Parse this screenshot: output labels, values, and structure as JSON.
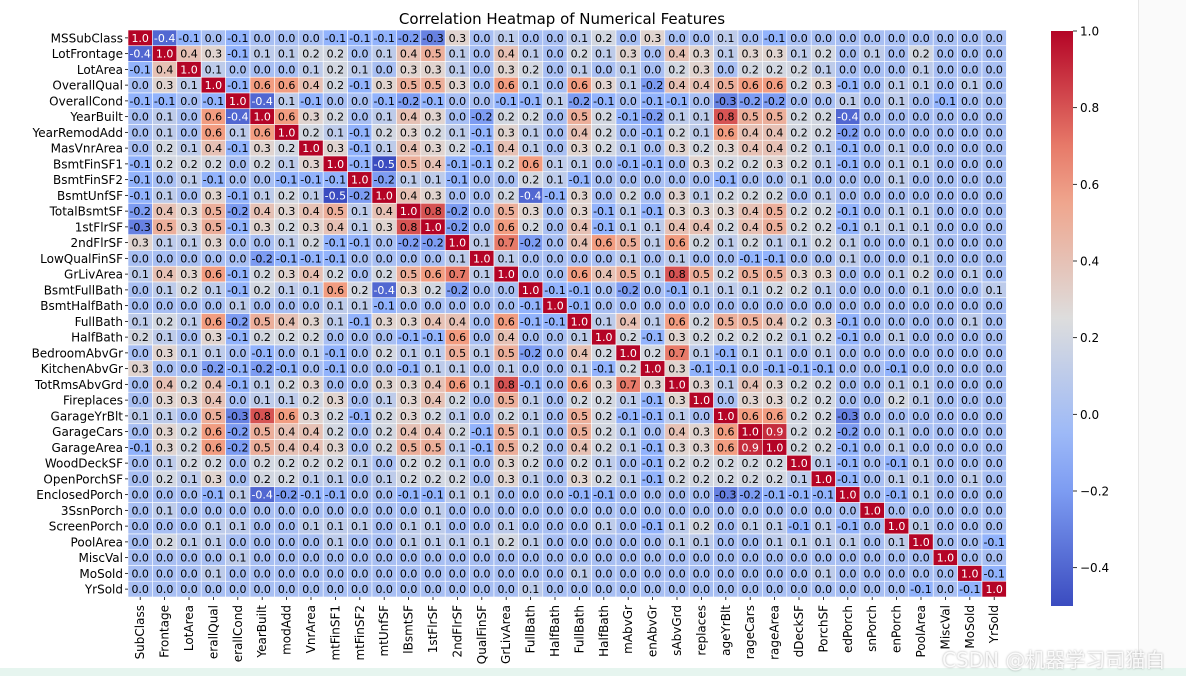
{
  "chart_data": {
    "type": "heatmap",
    "title": "Correlation Heatmap of Numerical Features",
    "x_tick_labels_visible": [
      "SubClass",
      "Frontage",
      "LotArea",
      "erallQual",
      "erallCond",
      "YearBuilt",
      "modAdd",
      "VnrArea",
      "mtFinSF1",
      "mtFinSF2",
      "mtUnfSF",
      "lBsmtSF",
      "1stFlrSF",
      "2ndFlrSF",
      "QualFinSF",
      "GrLivArea",
      "FullBath",
      "HalfBath",
      "FullBath",
      "HalfBath",
      "mAbvGr",
      "enAbvGr",
      "sAbvGrd",
      "replaces",
      "ageYrBlt",
      "rageCars",
      "rageArea",
      "dDeckSF",
      "PorchSF",
      "edPorch",
      "snPorch",
      "enPorch",
      "PoolArea",
      "MiscVal",
      "MoSold",
      "YrSold"
    ],
    "features": [
      "MSSubClass",
      "LotFrontage",
      "LotArea",
      "OverallQual",
      "OverallCond",
      "YearBuilt",
      "YearRemodAdd",
      "MasVnrArea",
      "BsmtFinSF1",
      "BsmtFinSF2",
      "BsmtUnfSF",
      "TotalBsmtSF",
      "1stFlrSF",
      "2ndFlrSF",
      "LowQualFinSF",
      "GrLivArea",
      "BsmtFullBath",
      "BsmtHalfBath",
      "FullBath",
      "HalfBath",
      "BedroomAbvGr",
      "KitchenAbvGr",
      "TotRmsAbvGrd",
      "Fireplaces",
      "GarageYrBlt",
      "GarageCars",
      "GarageArea",
      "WoodDeckSF",
      "OpenPorchSF",
      "EnclosedPorch",
      "3SsnPorch",
      "ScreenPorch",
      "PoolArea",
      "MiscVal",
      "MoSold",
      "YrSold"
    ],
    "matrix": [
      [
        1.0,
        -0.4,
        -0.1,
        0.0,
        -0.1,
        0.0,
        0.0,
        0.0,
        -0.1,
        -0.1,
        -0.1,
        -0.2,
        -0.3,
        0.3,
        0.0,
        0.1,
        0.0,
        0.0,
        0.1,
        0.2,
        0.0,
        0.3,
        0.0,
        0.0,
        0.1,
        0.0,
        -0.1,
        0.0,
        0.0,
        0.0,
        0.0,
        0.0,
        0.0,
        0.0,
        0.0,
        0.0
      ],
      [
        -0.4,
        1.0,
        0.4,
        0.3,
        -0.1,
        0.1,
        0.1,
        0.2,
        0.2,
        0.0,
        0.1,
        0.4,
        0.5,
        0.1,
        0.0,
        0.4,
        0.1,
        0.0,
        0.2,
        0.1,
        0.3,
        0.0,
        0.4,
        0.3,
        0.1,
        0.3,
        0.3,
        0.1,
        0.2,
        0.0,
        0.1,
        0.0,
        0.2,
        0.0,
        0.0,
        0.0
      ],
      [
        -0.1,
        0.4,
        1.0,
        0.1,
        0.0,
        0.0,
        0.0,
        0.1,
        0.2,
        0.1,
        0.0,
        0.3,
        0.3,
        0.1,
        0.0,
        0.3,
        0.2,
        0.0,
        0.1,
        0.0,
        0.1,
        0.0,
        0.2,
        0.3,
        0.0,
        0.2,
        0.2,
        0.2,
        0.1,
        0.0,
        0.0,
        0.0,
        0.1,
        0.0,
        0.0,
        0.0
      ],
      [
        0.0,
        0.3,
        0.1,
        1.0,
        -0.1,
        0.6,
        0.6,
        0.4,
        0.2,
        -0.1,
        0.3,
        0.5,
        0.5,
        0.3,
        0.0,
        0.6,
        0.1,
        0.0,
        0.6,
        0.3,
        0.1,
        -0.2,
        0.4,
        0.4,
        0.5,
        0.6,
        0.6,
        0.2,
        0.3,
        -0.1,
        0.0,
        0.1,
        0.1,
        0.0,
        0.1,
        0.0
      ],
      [
        -0.1,
        -0.1,
        0.0,
        -0.1,
        1.0,
        -0.4,
        0.1,
        -0.1,
        0.0,
        0.0,
        -0.1,
        -0.2,
        -0.1,
        0.0,
        0.0,
        -0.1,
        -0.1,
        0.1,
        -0.2,
        -0.1,
        0.0,
        -0.1,
        -0.1,
        0.0,
        -0.3,
        -0.2,
        -0.2,
        0.0,
        0.0,
        0.1,
        0.0,
        0.1,
        0.0,
        -0.1,
        0.0,
        0.0
      ],
      [
        0.0,
        0.1,
        0.0,
        0.6,
        -0.4,
        1.0,
        0.6,
        0.3,
        0.2,
        0.0,
        0.1,
        0.4,
        0.3,
        0.0,
        -0.2,
        0.2,
        0.2,
        0.0,
        0.5,
        0.2,
        -0.1,
        -0.2,
        0.1,
        0.1,
        0.8,
        0.5,
        0.5,
        0.2,
        0.2,
        -0.4,
        0.0,
        0.0,
        0.0,
        0.0,
        0.0,
        0.0
      ],
      [
        0.0,
        0.1,
        0.0,
        0.6,
        0.1,
        0.6,
        1.0,
        0.2,
        0.1,
        -0.1,
        0.2,
        0.3,
        0.2,
        0.1,
        -0.1,
        0.3,
        0.1,
        0.0,
        0.4,
        0.2,
        0.0,
        -0.1,
        0.2,
        0.1,
        0.6,
        0.4,
        0.4,
        0.2,
        0.2,
        -0.2,
        0.0,
        0.0,
        0.0,
        0.0,
        0.0,
        0.0
      ],
      [
        0.0,
        0.2,
        0.1,
        0.4,
        -0.1,
        0.3,
        0.2,
        1.0,
        0.3,
        -0.1,
        0.1,
        0.4,
        0.3,
        0.2,
        -0.1,
        0.4,
        0.1,
        0.0,
        0.3,
        0.2,
        0.1,
        0.0,
        0.3,
        0.2,
        0.3,
        0.4,
        0.4,
        0.2,
        0.1,
        -0.1,
        0.0,
        0.1,
        0.0,
        0.0,
        0.0,
        0.0
      ],
      [
        -0.1,
        0.2,
        0.2,
        0.2,
        0.0,
        0.2,
        0.1,
        0.3,
        1.0,
        -0.1,
        -0.5,
        0.5,
        0.4,
        -0.1,
        -0.1,
        0.2,
        0.6,
        0.1,
        0.1,
        0.0,
        -0.1,
        -0.1,
        0.0,
        0.3,
        0.2,
        0.2,
        0.3,
        0.2,
        0.1,
        -0.1,
        0.0,
        0.1,
        0.1,
        0.0,
        0.0,
        0.0
      ],
      [
        -0.1,
        0.0,
        0.1,
        -0.1,
        0.0,
        0.0,
        -0.1,
        -0.1,
        -0.1,
        1.0,
        -0.2,
        0.1,
        0.1,
        -0.1,
        0.0,
        0.0,
        0.2,
        0.1,
        -0.1,
        0.0,
        0.0,
        0.0,
        0.0,
        0.0,
        -0.1,
        0.0,
        0.0,
        0.1,
        0.0,
        0.0,
        0.0,
        0.1,
        0.0,
        0.0,
        0.0,
        0.0
      ],
      [
        -0.1,
        0.1,
        0.0,
        0.3,
        -0.1,
        0.1,
        0.2,
        0.1,
        -0.5,
        -0.2,
        1.0,
        0.4,
        0.3,
        0.0,
        0.0,
        0.2,
        -0.4,
        -0.1,
        0.3,
        0.0,
        0.2,
        0.0,
        0.3,
        0.1,
        0.2,
        0.2,
        0.2,
        0.0,
        0.1,
        0.0,
        0.0,
        0.0,
        0.0,
        0.0,
        0.0,
        0.0
      ],
      [
        -0.2,
        0.4,
        0.3,
        0.5,
        -0.2,
        0.4,
        0.3,
        0.4,
        0.5,
        0.1,
        0.4,
        1.0,
        0.8,
        -0.2,
        0.0,
        0.5,
        0.3,
        0.0,
        0.3,
        -0.1,
        0.1,
        -0.1,
        0.3,
        0.3,
        0.3,
        0.4,
        0.5,
        0.2,
        0.2,
        -0.1,
        0.0,
        0.1,
        0.1,
        0.0,
        0.0,
        0.0
      ],
      [
        -0.3,
        0.5,
        0.3,
        0.5,
        -0.1,
        0.3,
        0.2,
        0.3,
        0.4,
        0.1,
        0.3,
        0.8,
        1.0,
        -0.2,
        0.0,
        0.6,
        0.2,
        0.0,
        0.4,
        -0.1,
        0.1,
        0.1,
        0.4,
        0.4,
        0.2,
        0.4,
        0.5,
        0.2,
        0.2,
        -0.1,
        0.1,
        0.1,
        0.1,
        0.0,
        0.0,
        0.0
      ],
      [
        0.3,
        0.1,
        0.1,
        0.3,
        0.0,
        0.0,
        0.1,
        0.2,
        -0.1,
        -0.1,
        0.0,
        -0.2,
        -0.2,
        1.0,
        0.1,
        0.7,
        -0.2,
        0.0,
        0.4,
        0.6,
        0.5,
        0.1,
        0.6,
        0.2,
        0.1,
        0.2,
        0.1,
        0.1,
        0.2,
        0.1,
        0.0,
        0.0,
        0.1,
        0.0,
        0.0,
        0.0
      ],
      [
        0.0,
        0.0,
        0.0,
        0.0,
        0.0,
        -0.2,
        -0.1,
        -0.1,
        -0.1,
        0.0,
        0.0,
        0.0,
        0.0,
        0.1,
        1.0,
        0.1,
        0.0,
        0.0,
        0.0,
        0.0,
        0.1,
        0.0,
        0.1,
        0.0,
        0.0,
        -0.1,
        -0.1,
        0.0,
        0.0,
        0.1,
        0.0,
        0.0,
        0.1,
        0.0,
        0.0,
        0.0
      ],
      [
        0.1,
        0.4,
        0.3,
        0.6,
        -0.1,
        0.2,
        0.3,
        0.4,
        0.2,
        0.0,
        0.2,
        0.5,
        0.6,
        0.7,
        0.1,
        1.0,
        0.0,
        0.0,
        0.6,
        0.4,
        0.5,
        0.1,
        0.8,
        0.5,
        0.2,
        0.5,
        0.5,
        0.3,
        0.3,
        0.0,
        0.0,
        0.1,
        0.2,
        0.0,
        0.1,
        0.0
      ],
      [
        0.0,
        0.1,
        0.2,
        0.1,
        -0.1,
        0.2,
        0.1,
        0.1,
        0.6,
        0.2,
        -0.4,
        0.3,
        0.2,
        -0.2,
        0.0,
        0.0,
        1.0,
        -0.1,
        -0.1,
        0.0,
        -0.2,
        0.0,
        -0.1,
        0.1,
        0.1,
        0.1,
        0.2,
        0.2,
        0.1,
        0.0,
        0.0,
        0.0,
        0.1,
        0.0,
        0.0,
        0.1
      ],
      [
        0.0,
        0.0,
        0.0,
        0.0,
        0.1,
        0.0,
        0.0,
        0.0,
        0.1,
        0.1,
        -0.1,
        0.0,
        0.0,
        0.0,
        0.0,
        0.0,
        -0.1,
        1.0,
        -0.1,
        0.0,
        0.0,
        0.0,
        0.0,
        0.0,
        0.0,
        0.0,
        0.0,
        0.0,
        0.0,
        0.0,
        0.0,
        0.0,
        0.0,
        0.0,
        0.0,
        0.0
      ],
      [
        0.1,
        0.2,
        0.1,
        0.6,
        -0.2,
        0.5,
        0.4,
        0.3,
        0.1,
        -0.1,
        0.3,
        0.3,
        0.4,
        0.4,
        0.0,
        0.6,
        -0.1,
        -0.1,
        1.0,
        0.1,
        0.4,
        0.1,
        0.6,
        0.2,
        0.5,
        0.5,
        0.4,
        0.2,
        0.3,
        -0.1,
        0.0,
        0.0,
        0.0,
        0.0,
        0.1,
        0.0
      ],
      [
        0.2,
        0.1,
        0.0,
        0.3,
        -0.1,
        0.2,
        0.2,
        0.2,
        0.0,
        0.0,
        0.0,
        -0.1,
        -0.1,
        0.6,
        0.0,
        0.4,
        0.0,
        0.0,
        0.1,
        1.0,
        0.2,
        -0.1,
        0.3,
        0.2,
        0.2,
        0.2,
        0.2,
        0.1,
        0.2,
        -0.1,
        0.0,
        0.1,
        0.0,
        0.0,
        0.0,
        0.0
      ],
      [
        0.0,
        0.3,
        0.1,
        0.1,
        0.0,
        -0.1,
        0.0,
        0.1,
        -0.1,
        0.0,
        0.2,
        0.1,
        0.1,
        0.5,
        0.1,
        0.5,
        -0.2,
        0.0,
        0.4,
        0.2,
        1.0,
        0.2,
        0.7,
        0.1,
        -0.1,
        0.1,
        0.1,
        0.0,
        0.1,
        0.0,
        0.0,
        0.0,
        0.0,
        0.0,
        0.0,
        0.0
      ],
      [
        0.3,
        0.0,
        0.0,
        -0.2,
        -0.1,
        -0.2,
        -0.1,
        0.0,
        -0.1,
        0.0,
        0.0,
        -0.1,
        0.1,
        0.1,
        0.0,
        0.1,
        0.0,
        0.0,
        0.1,
        -0.1,
        0.2,
        1.0,
        0.3,
        -0.1,
        -0.1,
        0.0,
        -0.1,
        -0.1,
        -0.1,
        0.0,
        0.0,
        -0.1,
        0.0,
        0.0,
        0.0,
        0.0
      ],
      [
        0.0,
        0.4,
        0.2,
        0.4,
        -0.1,
        0.1,
        0.2,
        0.3,
        0.0,
        0.0,
        0.3,
        0.3,
        0.4,
        0.6,
        0.1,
        0.8,
        -0.1,
        0.0,
        0.6,
        0.3,
        0.7,
        0.3,
        1.0,
        0.3,
        0.1,
        0.4,
        0.3,
        0.2,
        0.2,
        0.0,
        0.0,
        0.1,
        0.1,
        0.0,
        0.0,
        0.0
      ],
      [
        0.0,
        0.3,
        0.3,
        0.4,
        0.0,
        0.1,
        0.1,
        0.2,
        0.3,
        0.0,
        0.1,
        0.3,
        0.4,
        0.2,
        0.0,
        0.5,
        0.1,
        0.0,
        0.2,
        0.2,
        0.1,
        -0.1,
        0.3,
        1.0,
        0.0,
        0.3,
        0.3,
        0.2,
        0.2,
        0.0,
        0.0,
        0.2,
        0.1,
        0.0,
        0.0,
        0.0
      ],
      [
        0.1,
        0.1,
        0.0,
        0.5,
        -0.3,
        0.8,
        0.6,
        0.3,
        0.2,
        -0.1,
        0.2,
        0.3,
        0.2,
        0.1,
        0.0,
        0.2,
        0.1,
        0.0,
        0.5,
        0.2,
        -0.1,
        -0.1,
        0.1,
        0.0,
        1.0,
        0.6,
        0.6,
        0.2,
        0.2,
        -0.3,
        0.0,
        0.0,
        0.0,
        0.0,
        0.0,
        0.0
      ],
      [
        0.0,
        0.3,
        0.2,
        0.6,
        -0.2,
        0.5,
        0.4,
        0.4,
        0.2,
        0.0,
        0.2,
        0.4,
        0.4,
        0.2,
        -0.1,
        0.5,
        0.1,
        0.0,
        0.5,
        0.2,
        0.1,
        0.0,
        0.4,
        0.3,
        0.6,
        1.0,
        0.9,
        0.2,
        0.2,
        -0.2,
        0.0,
        0.1,
        0.0,
        0.0,
        0.0,
        0.0
      ],
      [
        -0.1,
        0.3,
        0.2,
        0.6,
        -0.2,
        0.5,
        0.4,
        0.4,
        0.3,
        0.0,
        0.2,
        0.5,
        0.5,
        0.1,
        -0.1,
        0.5,
        0.2,
        0.0,
        0.4,
        0.2,
        0.1,
        -0.1,
        0.3,
        0.3,
        0.6,
        0.9,
        1.0,
        0.2,
        0.2,
        -0.1,
        0.0,
        0.1,
        0.0,
        0.0,
        0.0,
        0.0
      ],
      [
        0.0,
        0.1,
        0.2,
        0.2,
        0.0,
        0.2,
        0.2,
        0.2,
        0.2,
        0.1,
        0.0,
        0.2,
        0.2,
        0.1,
        0.0,
        0.3,
        0.2,
        0.0,
        0.2,
        0.1,
        0.0,
        -0.1,
        0.2,
        0.2,
        0.2,
        0.2,
        0.2,
        1.0,
        0.1,
        -0.1,
        0.0,
        -0.1,
        0.1,
        0.0,
        0.0,
        0.0
      ],
      [
        0.0,
        0.2,
        0.1,
        0.3,
        0.0,
        0.2,
        0.2,
        0.1,
        0.1,
        0.0,
        0.1,
        0.2,
        0.2,
        0.2,
        0.0,
        0.3,
        0.1,
        0.0,
        0.3,
        0.2,
        0.1,
        -0.1,
        0.2,
        0.2,
        0.2,
        0.2,
        0.2,
        0.1,
        1.0,
        -0.1,
        0.0,
        0.1,
        0.1,
        0.0,
        0.1,
        0.0
      ],
      [
        0.0,
        0.0,
        0.0,
        -0.1,
        0.1,
        -0.4,
        -0.2,
        -0.1,
        -0.1,
        0.0,
        0.0,
        -0.1,
        -0.1,
        0.1,
        0.1,
        0.0,
        0.0,
        0.0,
        -0.1,
        -0.1,
        0.0,
        0.0,
        0.0,
        0.0,
        -0.3,
        -0.2,
        -0.1,
        -0.1,
        -0.1,
        1.0,
        0.0,
        -0.1,
        0.1,
        0.0,
        0.0,
        0.0
      ],
      [
        0.0,
        0.1,
        0.0,
        0.0,
        0.0,
        0.0,
        0.0,
        0.0,
        0.0,
        0.0,
        0.0,
        0.0,
        0.1,
        0.0,
        0.0,
        0.0,
        0.0,
        0.0,
        0.0,
        0.0,
        0.0,
        0.0,
        0.0,
        0.0,
        0.0,
        0.0,
        0.0,
        0.0,
        0.0,
        0.0,
        1.0,
        0.0,
        0.0,
        0.0,
        0.0,
        0.0
      ],
      [
        0.0,
        0.0,
        0.0,
        0.1,
        0.1,
        0.0,
        0.0,
        0.1,
        0.1,
        0.1,
        0.0,
        0.1,
        0.1,
        0.0,
        0.0,
        0.1,
        0.0,
        0.0,
        0.0,
        0.1,
        0.0,
        -0.1,
        0.1,
        0.2,
        0.0,
        0.1,
        0.1,
        -0.1,
        0.1,
        -0.1,
        0.0,
        1.0,
        0.1,
        0.0,
        0.0,
        0.0
      ],
      [
        0.0,
        0.2,
        0.1,
        0.1,
        0.0,
        0.0,
        0.0,
        0.0,
        0.1,
        0.0,
        0.0,
        0.1,
        0.1,
        0.1,
        0.1,
        0.2,
        0.1,
        0.0,
        0.0,
        0.0,
        0.0,
        0.0,
        0.1,
        0.1,
        0.0,
        0.0,
        0.1,
        0.1,
        0.1,
        0.1,
        0.0,
        0.1,
        1.0,
        0.0,
        0.0,
        -0.1
      ],
      [
        0.0,
        0.0,
        0.0,
        0.0,
        0.1,
        0.0,
        0.0,
        0.0,
        0.0,
        0.0,
        0.0,
        0.0,
        0.0,
        0.0,
        0.0,
        0.0,
        0.0,
        0.0,
        0.0,
        0.0,
        0.0,
        0.0,
        0.0,
        0.0,
        0.0,
        0.0,
        0.0,
        0.0,
        0.0,
        0.0,
        0.0,
        0.0,
        0.0,
        1.0,
        0.0,
        0.0
      ],
      [
        0.0,
        0.0,
        0.0,
        0.1,
        0.0,
        0.0,
        0.0,
        0.0,
        0.0,
        0.0,
        0.0,
        0.0,
        0.0,
        0.0,
        0.0,
        0.0,
        0.0,
        0.0,
        0.1,
        0.0,
        0.0,
        0.0,
        0.0,
        0.0,
        0.0,
        0.0,
        0.0,
        0.0,
        0.1,
        0.0,
        0.0,
        0.0,
        0.0,
        0.0,
        1.0,
        -0.1
      ],
      [
        0.0,
        0.0,
        0.0,
        0.0,
        0.0,
        0.0,
        0.0,
        0.0,
        0.0,
        0.0,
        0.0,
        0.0,
        0.0,
        0.0,
        0.0,
        0.0,
        0.1,
        0.0,
        0.0,
        0.0,
        0.0,
        0.0,
        0.0,
        0.0,
        0.0,
        0.0,
        0.0,
        0.0,
        0.0,
        0.0,
        0.0,
        0.0,
        -0.1,
        0.0,
        -0.1,
        1.0
      ]
    ],
    "colormap": "coolwarm",
    "vmin": -0.5,
    "vmax": 1.0,
    "colorbar_ticks": [
      "1.0",
      "0.8",
      "0.6",
      "0.4",
      "0.2",
      "0.0",
      "−0.2",
      "−0.4"
    ],
    "colorbar_tick_values": [
      1.0,
      0.8,
      0.6,
      0.4,
      0.2,
      0.0,
      -0.2,
      -0.4
    ],
    "annotations": true,
    "grid_lines": true,
    "legend_placement": "right colorbar"
  },
  "watermark": "CSDN @机器学习司猫白"
}
